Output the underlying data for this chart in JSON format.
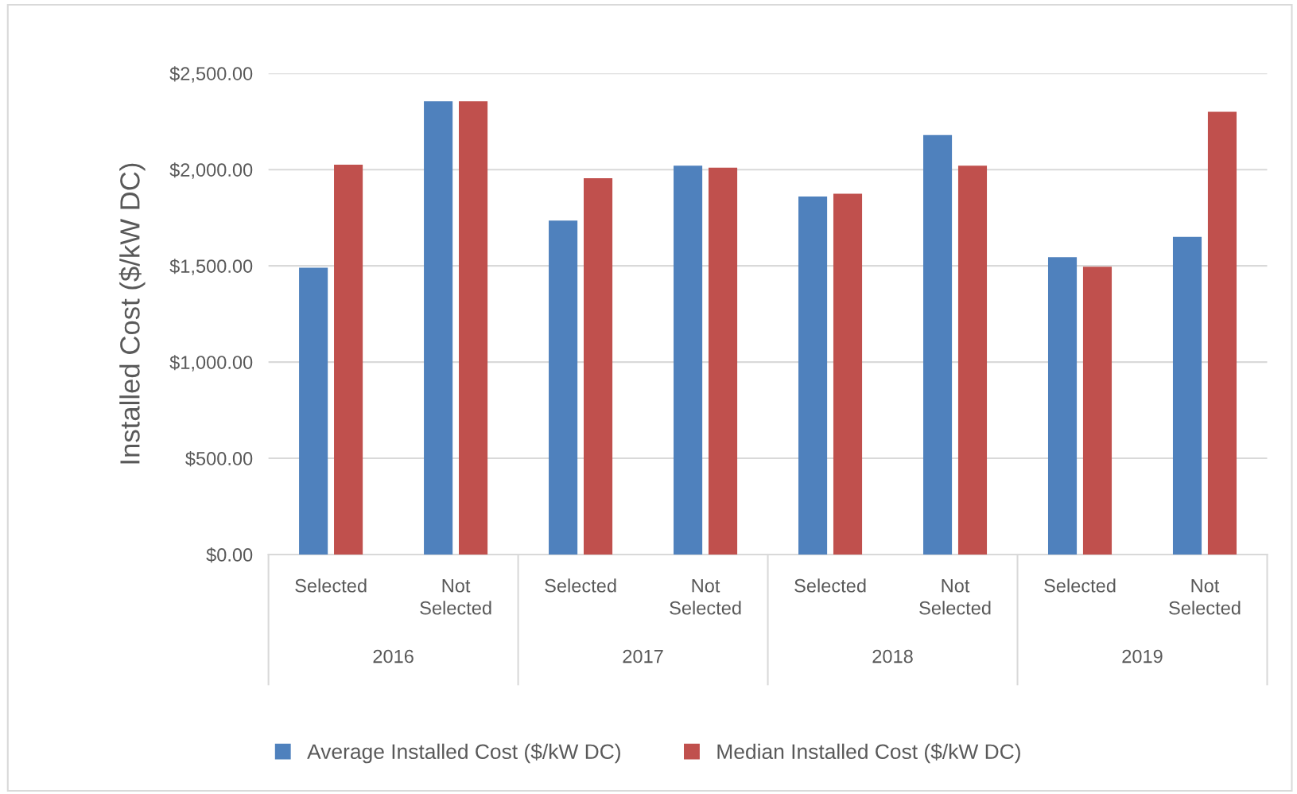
{
  "chart_data": {
    "type": "bar",
    "ylabel": "Installed Cost ($/kW DC)",
    "categories": [
      "Selected",
      "Not Selected",
      "Selected",
      "Not Selected",
      "Selected",
      "Not Selected",
      "Selected",
      "Not Selected"
    ],
    "annotations": [
      "2016",
      "2017",
      "2018",
      "2019"
    ],
    "series": [
      {
        "name": "Average Installed Cost ($/kW DC)",
        "color": "#4f81bd",
        "values": [
          1490,
          2355,
          1735,
          2020,
          1860,
          2180,
          1545,
          1650
        ]
      },
      {
        "name": "Median Installed Cost ($/kW DC)",
        "color": "#c0504d",
        "values": [
          2025,
          2355,
          1955,
          2010,
          1875,
          2020,
          1495,
          2300
        ]
      }
    ],
    "ylim": [
      0,
      2500
    ],
    "yticks": [
      {
        "value": 0,
        "label": "$0.00"
      },
      {
        "value": 500,
        "label": "$500.00"
      },
      {
        "value": 1000,
        "label": "$1,000.00"
      },
      {
        "value": 1500,
        "label": "$1,500.00"
      },
      {
        "value": 2000,
        "label": "$2,000.00"
      },
      {
        "value": 2500,
        "label": "$2,500.00"
      }
    ],
    "grid": "y",
    "legend": "bottom"
  }
}
